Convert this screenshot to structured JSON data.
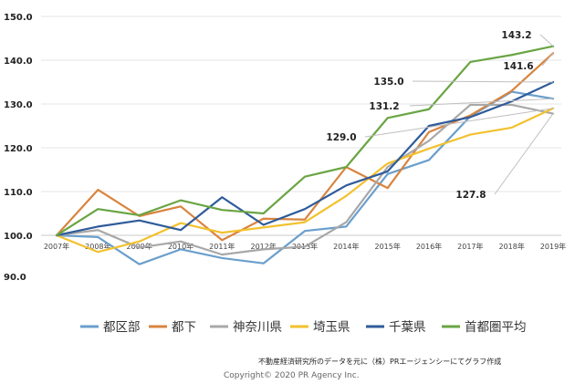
{
  "chart_data": {
    "type": "line",
    "categories": [
      "2007年",
      "2008年",
      "2009年",
      "2010年",
      "2011年",
      "2012年",
      "2013年",
      "2014年",
      "2015年",
      "2016年",
      "2017年",
      "2018年",
      "2019年"
    ],
    "y_ticks": [
      "90.0",
      "100.0",
      "110.0",
      "120.0",
      "130.0",
      "140.0",
      "150.0"
    ],
    "ylim": [
      90,
      150
    ],
    "grid": "horizontal",
    "legend_position": "bottom",
    "series": [
      {
        "name": "都区部",
        "color": "#6a9fcc",
        "values": [
          100.0,
          99.6,
          93.4,
          96.8,
          94.8,
          93.6,
          101.0,
          102.0,
          114.0,
          117.2,
          127.2,
          132.8,
          131.2
        ]
      },
      {
        "name": "都下",
        "color": "#d9843f",
        "values": [
          100.0,
          110.4,
          104.4,
          106.6,
          98.9,
          103.8,
          103.6,
          115.6,
          110.8,
          123.6,
          127.4,
          133.0,
          141.6
        ]
      },
      {
        "name": "神奈川県",
        "color": "#a8a8a8",
        "values": [
          100.0,
          101.2,
          97.2,
          98.6,
          95.6,
          96.8,
          97.4,
          103.0,
          115.6,
          121.6,
          129.8,
          129.8,
          127.8
        ]
      },
      {
        "name": "埼玉県",
        "color": "#f2c12e",
        "values": [
          100.0,
          96.2,
          98.6,
          102.8,
          100.6,
          101.8,
          103.0,
          109.0,
          116.4,
          119.8,
          123.0,
          124.6,
          129.0
        ]
      },
      {
        "name": "千葉県",
        "color": "#2f5b9a",
        "values": [
          100.0,
          102.0,
          103.4,
          101.2,
          108.7,
          102.4,
          106.0,
          111.4,
          114.6,
          125.0,
          127.0,
          130.6,
          135.0
        ]
      },
      {
        "name": "首都圏平均",
        "color": "#6aa544",
        "values": [
          100.0,
          106.0,
          104.6,
          108.0,
          105.8,
          105.0,
          113.4,
          115.6,
          126.8,
          128.8,
          139.6,
          141.2,
          143.2
        ]
      }
    ],
    "callouts": [
      "143.2",
      "141.6",
      "135.0",
      "131.2",
      "129.0",
      "127.8"
    ],
    "footer_note": "不動産経済研究所のデータを元に（株）PRエージェンシーにてグラフ作成",
    "copyright": "Copyright© 2020 PR Agency Inc."
  }
}
